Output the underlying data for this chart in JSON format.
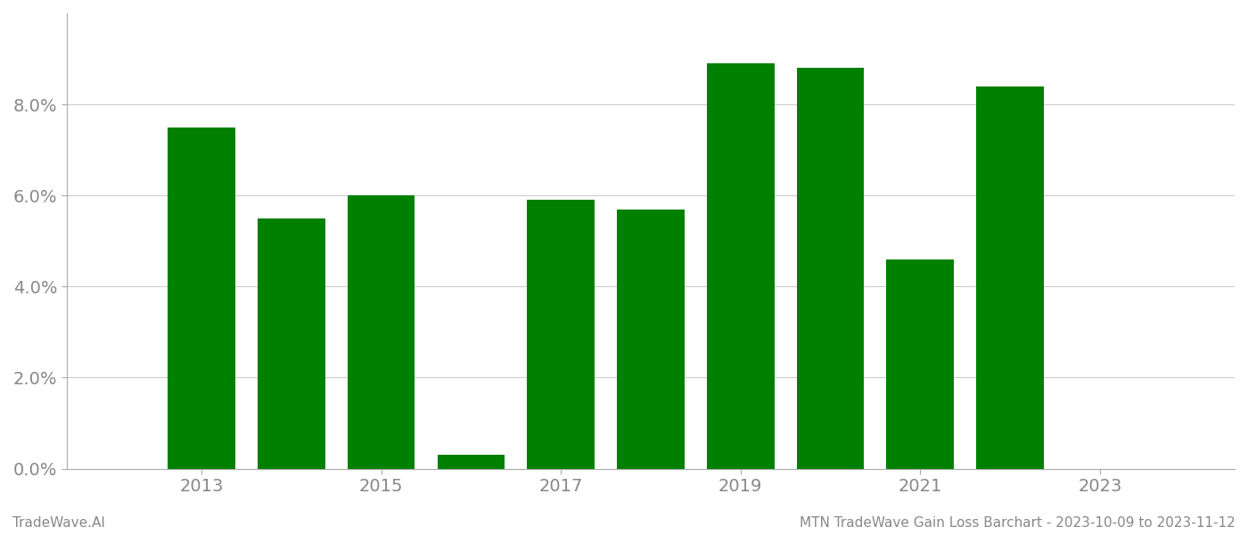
{
  "bar_years": [
    2013,
    2014,
    2015,
    2016,
    2017,
    2018,
    2019,
    2020,
    2021,
    2022
  ],
  "bar_values": [
    0.075,
    0.055,
    0.06,
    0.003,
    0.059,
    0.057,
    0.089,
    0.088,
    0.046,
    0.084
  ],
  "bar_color": "#008000",
  "background_color": "#ffffff",
  "grid_color": "#cccccc",
  "axis_color": "#aaaaaa",
  "tick_color": "#888888",
  "yticks": [
    0.0,
    0.02,
    0.04,
    0.06,
    0.08
  ],
  "xticks": [
    2013,
    2015,
    2017,
    2019,
    2021,
    2023
  ],
  "ylim": [
    0,
    0.1
  ],
  "xlim": [
    2011.5,
    2024.5
  ],
  "bar_width": 0.75,
  "footer_left": "TradeWave.AI",
  "footer_right": "MTN TradeWave Gain Loss Barchart - 2023-10-09 to 2023-11-12",
  "footer_color": "#888888",
  "footer_fontsize": 11,
  "tick_fontsize": 14
}
